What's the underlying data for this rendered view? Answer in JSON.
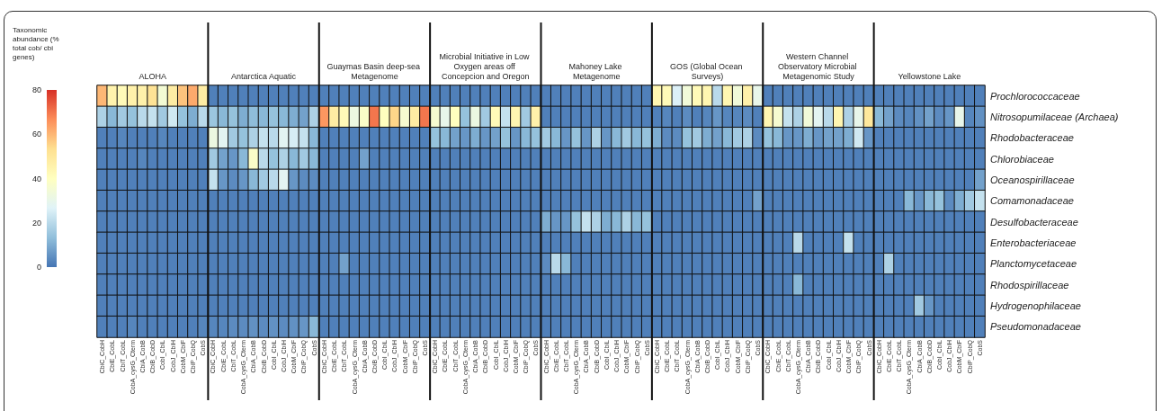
{
  "chart_data": {
    "type": "heatmap",
    "clabel": "Taxonomic abundance (% total cob/ cbi genes)",
    "clim": [
      0,
      80
    ],
    "cticks": [
      0,
      20,
      40,
      60,
      80
    ],
    "annotations": [
      "ALOHA",
      "Antarctica Aquatic",
      "Guaymas Basin deep-sea Metagenome",
      "Microbial Initiative in Low Oxygen areas off Concepcion and Oregon",
      "Mahoney Lake Metagenome",
      "GOS (Global Ocean Surveys)",
      "Western Channel Observatory Microbial Metagenomic Study",
      "Yellowstone Lake"
    ],
    "categories": [
      "CbiC_CobH",
      "CbiE_CobL",
      "CbiT_CobL",
      "CobA_cysG_Cterm",
      "CbiA_CobB",
      "CbiB_CobD",
      "CobI_CbiL",
      "CobJ_CbiH",
      "CobM_CbiF",
      "CbiP_CobQ",
      "CobS",
      "CbiC_CobH",
      "CbiE_CobL",
      "CbiT_CobL",
      "CobA_cysG_Cterm",
      "CbiA_CobB",
      "CbiB_CobD",
      "CobI_CbiL",
      "CobJ_CbiH",
      "CobM_CbiF",
      "CbiP_CobQ",
      "CobS",
      "CbiC_CobH",
      "CbiE_CobL",
      "CbiT_CobL",
      "CobA_cysG_Cterm",
      "CbiA_CobB",
      "CbiB_CobD",
      "CobI_CbiL",
      "CobJ_CbiH",
      "CobM_CbiF",
      "CbiP_CobQ",
      "CobS",
      "CbiC_CobH",
      "CbiE_CobL",
      "CbiT_CobL",
      "CobA_cysG_Cterm",
      "CbiA_CobB",
      "CbiB_CobD",
      "CobI_CbiL",
      "CobJ_CbiH",
      "CobM_CbiF",
      "CbiP_CobQ",
      "CobS",
      "CbiC_CobH",
      "CbiE_CobL",
      "CbiT_CobL",
      "CobA_cysG_Cterm",
      "CbiA_CobB",
      "CbiB_CobD",
      "CobI_CbiL",
      "CobJ_CbiH",
      "CobM_CbiF",
      "CbiP_CobQ",
      "CobS",
      "CbiC_CobH",
      "CbiE_CobL",
      "CbiT_CobL",
      "CobA_cysG_Cterm",
      "CbiA_CobB",
      "CbiB_CobD",
      "CobI_CbiL",
      "CobJ_CbiH",
      "CobM_CbiF",
      "CbiP_CobQ",
      "CobS",
      "CbiC_CobH",
      "CbiE_CobL",
      "CbiT_CobL",
      "CobA_cysG_Cterm",
      "CbiA_CobB",
      "CbiB_CobD",
      "CobI_CbiL",
      "CobJ_CbiH",
      "CobM_CbiF",
      "CbiP_CobQ",
      "CobS",
      "CbiC_CobH",
      "CbiE_CobL",
      "CbiT_CobL",
      "CobA_cysG_Cterm",
      "CbiA_CobB",
      "CbiB_CobD",
      "CobI_CbiL",
      "CobJ_CbiH",
      "CobM_CbiF",
      "CbiP_CobQ",
      "CobS"
    ],
    "y_categories": [
      "Prochlorococcaceae",
      "Nitrosopumilaceae (Archaea)",
      "Rhodobacteraceae",
      "Chlorobiaceae",
      "Oceanospirillaceae",
      "Comamonadaceae",
      "Desulfobacteraceae",
      "Enterobacteriaceae",
      "Planctomycetaceae",
      "Rhodospirillaceae",
      "Hydrogenophilaceae",
      "Pseudomonadaceae"
    ],
    "cells": [
      [
        60,
        45,
        42,
        46,
        46,
        52,
        35,
        48,
        58,
        62,
        48,
        2,
        2,
        2,
        2,
        2,
        2,
        2,
        2,
        2,
        2,
        2,
        2,
        2,
        2,
        2,
        2,
        2,
        2,
        2,
        2,
        2,
        2,
        2,
        2,
        2,
        2,
        2,
        2,
        2,
        2,
        2,
        2,
        2,
        2,
        2,
        2,
        2,
        2,
        2,
        2,
        2,
        2,
        2,
        2,
        44,
        42,
        26,
        34,
        42,
        44,
        20,
        44,
        34,
        46,
        30,
        2,
        2,
        2,
        2,
        2,
        2,
        2,
        2,
        2,
        2,
        2,
        2,
        2,
        2,
        2,
        2,
        2,
        2,
        2,
        2,
        2,
        2
      ],
      [
        18,
        12,
        16,
        14,
        20,
        22,
        16,
        24,
        14,
        10,
        20,
        15,
        12,
        14,
        10,
        13,
        12,
        14,
        12,
        10,
        8,
        18,
        65,
        48,
        42,
        32,
        38,
        70,
        40,
        55,
        36,
        48,
        70,
        36,
        30,
        40,
        14,
        32,
        16,
        42,
        22,
        44,
        16,
        46,
        2,
        2,
        2,
        2,
        2,
        2,
        2,
        2,
        2,
        2,
        2,
        2,
        3,
        2,
        4,
        2,
        3,
        6,
        3,
        3,
        4,
        2,
        44,
        36,
        22,
        18,
        34,
        28,
        20,
        44,
        18,
        30,
        50,
        12,
        8,
        4,
        3,
        5,
        8,
        4,
        6,
        30,
        3,
        5
      ],
      [
        2,
        2,
        3,
        2,
        2,
        2,
        3,
        2,
        2,
        2,
        2,
        32,
        28,
        16,
        14,
        18,
        22,
        20,
        28,
        25,
        22,
        12,
        2,
        2,
        2,
        2,
        2,
        2,
        2,
        2,
        2,
        2,
        2,
        14,
        12,
        8,
        6,
        10,
        6,
        8,
        14,
        6,
        12,
        14,
        16,
        12,
        6,
        14,
        6,
        18,
        6,
        12,
        16,
        12,
        14,
        10,
        4,
        4,
        14,
        16,
        10,
        8,
        12,
        16,
        18,
        4,
        14,
        12,
        6,
        6,
        10,
        6,
        8,
        8,
        10,
        24,
        6,
        2,
        2,
        2,
        2,
        2,
        2,
        2,
        2,
        2,
        2,
        2
      ],
      [
        2,
        2,
        2,
        2,
        3,
        2,
        2,
        2,
        2,
        2,
        2,
        16,
        8,
        6,
        12,
        38,
        20,
        14,
        18,
        12,
        16,
        12,
        2,
        2,
        2,
        2,
        8,
        2,
        2,
        2,
        2,
        2,
        2,
        2,
        2,
        2,
        2,
        2,
        2,
        2,
        2,
        2,
        2,
        2,
        2,
        2,
        2,
        2,
        2,
        2,
        2,
        2,
        2,
        2,
        2,
        2,
        2,
        2,
        2,
        2,
        2,
        2,
        2,
        2,
        2,
        2,
        2,
        2,
        2,
        2,
        2,
        2,
        2,
        2,
        2,
        2,
        2,
        2,
        2,
        2,
        2,
        2,
        2,
        2,
        2,
        2,
        2,
        2
      ],
      [
        2,
        2,
        2,
        2,
        2,
        2,
        2,
        2,
        2,
        2,
        2,
        22,
        6,
        4,
        6,
        12,
        16,
        20,
        28,
        6,
        4,
        4,
        2,
        2,
        2,
        2,
        2,
        2,
        2,
        2,
        2,
        2,
        2,
        2,
        2,
        2,
        2,
        2,
        2,
        2,
        2,
        2,
        2,
        2,
        2,
        2,
        2,
        2,
        2,
        2,
        2,
        2,
        2,
        2,
        2,
        2,
        2,
        2,
        2,
        2,
        2,
        2,
        2,
        2,
        2,
        2,
        2,
        2,
        2,
        2,
        2,
        2,
        2,
        2,
        2,
        2,
        2,
        2,
        2,
        2,
        2,
        2,
        2,
        2,
        2,
        2,
        2,
        8
      ],
      [
        2,
        2,
        2,
        2,
        2,
        2,
        2,
        2,
        2,
        2,
        2,
        2,
        2,
        2,
        2,
        2,
        2,
        2,
        2,
        2,
        2,
        2,
        2,
        2,
        2,
        2,
        2,
        2,
        2,
        2,
        2,
        2,
        2,
        2,
        2,
        2,
        2,
        2,
        2,
        2,
        2,
        2,
        2,
        2,
        2,
        2,
        2,
        2,
        2,
        2,
        2,
        2,
        2,
        2,
        2,
        2,
        2,
        2,
        2,
        2,
        2,
        2,
        2,
        2,
        2,
        8,
        2,
        2,
        2,
        2,
        2,
        2,
        2,
        2,
        2,
        2,
        2,
        2,
        2,
        2,
        12,
        6,
        12,
        14,
        4,
        10,
        16,
        22
      ],
      [
        2,
        2,
        2,
        2,
        2,
        2,
        2,
        2,
        2,
        2,
        2,
        2,
        2,
        2,
        2,
        2,
        2,
        2,
        2,
        2,
        2,
        2,
        2,
        2,
        2,
        2,
        2,
        2,
        2,
        2,
        2,
        2,
        2,
        2,
        2,
        2,
        2,
        2,
        2,
        2,
        2,
        2,
        2,
        2,
        10,
        6,
        6,
        14,
        22,
        18,
        10,
        12,
        18,
        12,
        14,
        2,
        2,
        2,
        2,
        2,
        2,
        2,
        2,
        2,
        2,
        2,
        2,
        2,
        2,
        2,
        2,
        2,
        2,
        2,
        2,
        2,
        2,
        2,
        2,
        2,
        2,
        2,
        2,
        2,
        2,
        2,
        2,
        2
      ],
      [
        2,
        2,
        2,
        2,
        2,
        2,
        2,
        2,
        2,
        2,
        2,
        2,
        2,
        2,
        2,
        2,
        2,
        2,
        2,
        2,
        2,
        2,
        2,
        2,
        2,
        2,
        2,
        2,
        2,
        2,
        2,
        2,
        2,
        2,
        2,
        2,
        2,
        2,
        2,
        2,
        2,
        2,
        2,
        2,
        2,
        2,
        2,
        2,
        2,
        2,
        2,
        2,
        2,
        2,
        2,
        2,
        2,
        2,
        2,
        2,
        2,
        2,
        2,
        2,
        2,
        2,
        2,
        2,
        2,
        20,
        2,
        2,
        2,
        2,
        22,
        2,
        2,
        2,
        2,
        2,
        2,
        2,
        2,
        2,
        2,
        2,
        2,
        2
      ],
      [
        2,
        2,
        2,
        2,
        2,
        2,
        2,
        2,
        2,
        2,
        2,
        2,
        2,
        2,
        2,
        2,
        2,
        2,
        2,
        2,
        2,
        2,
        2,
        2,
        8,
        2,
        2,
        2,
        2,
        2,
        2,
        2,
        2,
        2,
        2,
        2,
        2,
        2,
        2,
        2,
        2,
        2,
        2,
        2,
        4,
        20,
        12,
        2,
        2,
        2,
        2,
        2,
        2,
        2,
        2,
        2,
        2,
        2,
        2,
        2,
        2,
        2,
        2,
        2,
        2,
        2,
        2,
        2,
        2,
        2,
        2,
        2,
        2,
        2,
        2,
        2,
        2,
        2,
        18,
        2,
        2,
        2,
        2,
        2,
        2,
        2,
        2,
        2
      ],
      [
        2,
        2,
        2,
        2,
        2,
        2,
        2,
        2,
        2,
        2,
        2,
        2,
        2,
        2,
        2,
        2,
        2,
        2,
        2,
        2,
        2,
        2,
        2,
        2,
        2,
        2,
        2,
        2,
        2,
        2,
        2,
        2,
        2,
        2,
        2,
        2,
        2,
        2,
        2,
        2,
        2,
        2,
        2,
        2,
        2,
        2,
        2,
        2,
        2,
        2,
        2,
        2,
        2,
        2,
        2,
        2,
        2,
        2,
        2,
        2,
        2,
        2,
        2,
        2,
        2,
        2,
        2,
        2,
        2,
        12,
        2,
        2,
        2,
        2,
        2,
        2,
        2,
        2,
        2,
        2,
        2,
        2,
        2,
        2,
        2,
        2,
        2,
        2
      ],
      [
        2,
        2,
        2,
        2,
        2,
        2,
        2,
        2,
        2,
        2,
        2,
        2,
        2,
        2,
        2,
        2,
        2,
        2,
        2,
        2,
        2,
        2,
        2,
        2,
        2,
        2,
        2,
        2,
        2,
        2,
        2,
        2,
        2,
        2,
        2,
        2,
        2,
        2,
        2,
        2,
        2,
        2,
        2,
        2,
        2,
        2,
        2,
        2,
        2,
        2,
        2,
        2,
        2,
        2,
        2,
        2,
        2,
        2,
        2,
        2,
        2,
        2,
        2,
        2,
        2,
        2,
        2,
        2,
        2,
        2,
        2,
        2,
        2,
        2,
        2,
        2,
        2,
        2,
        2,
        2,
        2,
        16,
        6,
        2,
        2,
        2,
        2,
        2
      ],
      [
        2,
        2,
        2,
        3,
        2,
        2,
        2,
        2,
        2,
        2,
        3,
        3,
        3,
        4,
        4,
        5,
        4,
        5,
        4,
        5,
        6,
        12,
        2,
        2,
        2,
        2,
        2,
        2,
        2,
        2,
        2,
        2,
        2,
        2,
        2,
        2,
        2,
        2,
        2,
        2,
        2,
        2,
        2,
        2,
        2,
        2,
        2,
        2,
        2,
        2,
        2,
        2,
        2,
        2,
        2,
        2,
        2,
        2,
        2,
        2,
        2,
        2,
        2,
        2,
        2,
        2,
        2,
        2,
        2,
        2,
        2,
        2,
        2,
        2,
        2,
        2,
        2,
        2,
        2,
        2,
        2,
        2,
        2,
        2,
        2,
        2,
        2,
        2
      ]
    ]
  }
}
